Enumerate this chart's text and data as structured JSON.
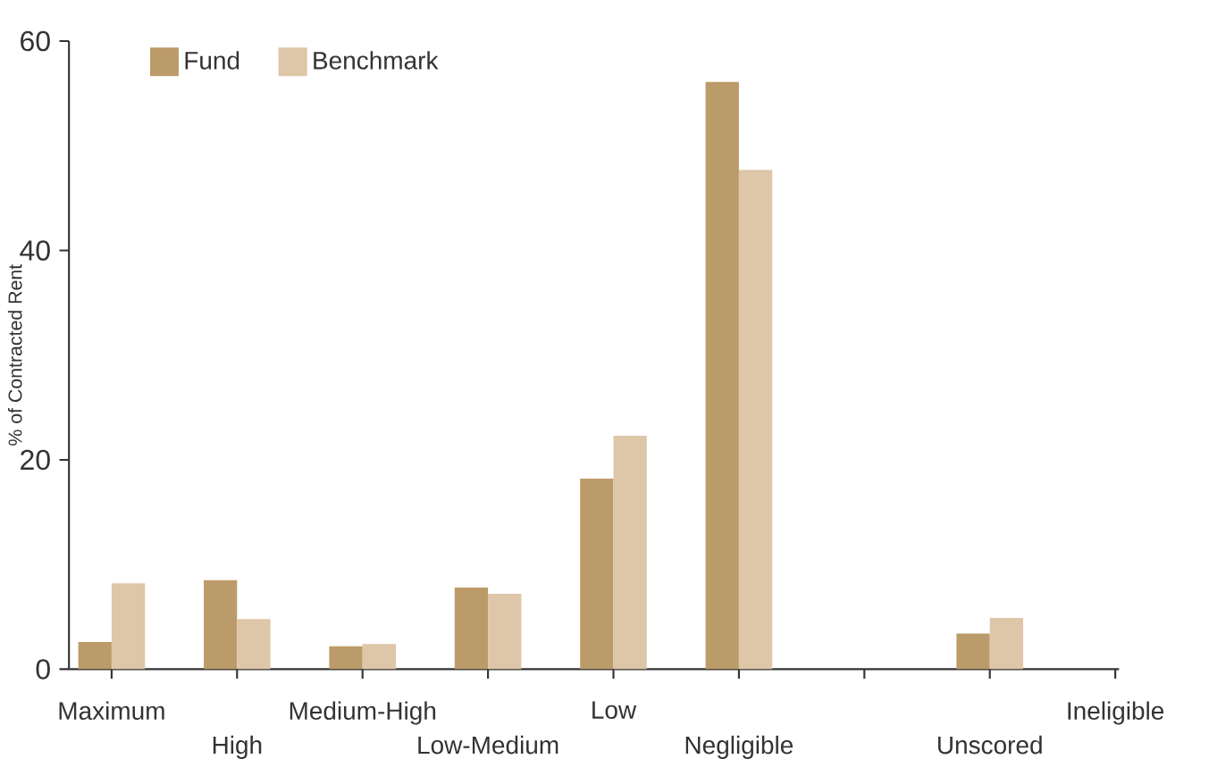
{
  "chart_data": {
    "type": "bar",
    "ylabel": "% of Contracted Rent",
    "categories": [
      "Maximum",
      "High",
      "Medium-High",
      "Low-Medium",
      "Low",
      "Negligible",
      null,
      "Unscored",
      "Ineligible"
    ],
    "series": [
      {
        "name": "Fund",
        "color": "#bc9b6a",
        "values": [
          2.6,
          8.5,
          2.2,
          7.8,
          18.2,
          56.1,
          null,
          3.4,
          null
        ]
      },
      {
        "name": "Benchmark",
        "color": "#dec6a8",
        "values": [
          8.2,
          4.8,
          2.4,
          7.2,
          22.3,
          47.7,
          null,
          4.9,
          null
        ]
      }
    ],
    "ylim": [
      0,
      60
    ],
    "yticks": [
      0,
      20,
      40,
      60
    ],
    "grid": false,
    "legend": "top left"
  }
}
